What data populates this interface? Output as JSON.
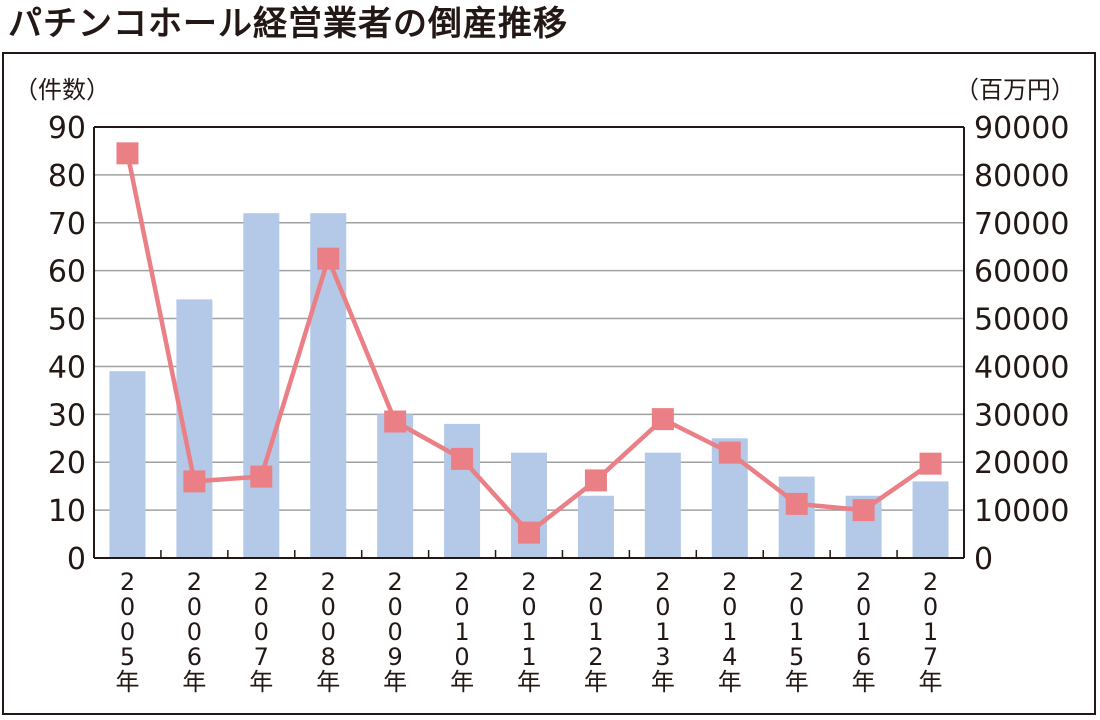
{
  "title": "パチンコホール経営業者の倒産推移",
  "chart_data": {
    "type": "bar",
    "categories": [
      "2005年",
      "2006年",
      "2007年",
      "2008年",
      "2009年",
      "2010年",
      "2011年",
      "2012年",
      "2013年",
      "2014年",
      "2015年",
      "2016年",
      "2017年"
    ],
    "category_chars": [
      [
        "2",
        "0",
        "0",
        "5",
        "年"
      ],
      [
        "2",
        "0",
        "0",
        "6",
        "年"
      ],
      [
        "2",
        "0",
        "0",
        "7",
        "年"
      ],
      [
        "2",
        "0",
        "0",
        "8",
        "年"
      ],
      [
        "2",
        "0",
        "0",
        "9",
        "年"
      ],
      [
        "2",
        "0",
        "1",
        "0",
        "年"
      ],
      [
        "2",
        "0",
        "1",
        "1",
        "年"
      ],
      [
        "2",
        "0",
        "1",
        "2",
        "年"
      ],
      [
        "2",
        "0",
        "1",
        "3",
        "年"
      ],
      [
        "2",
        "0",
        "1",
        "4",
        "年"
      ],
      [
        "2",
        "0",
        "1",
        "5",
        "年"
      ],
      [
        "2",
        "0",
        "1",
        "6",
        "年"
      ],
      [
        "2",
        "0",
        "1",
        "7",
        "年"
      ]
    ],
    "series": [
      {
        "type": "bar",
        "axis": "left",
        "color": "#b3c9e7",
        "values": [
          39,
          54,
          72,
          72,
          30,
          28,
          22,
          13,
          22,
          25,
          17,
          13,
          16
        ]
      },
      {
        "type": "line",
        "axis": "right",
        "color": "#eb7f86",
        "values": [
          84500,
          16000,
          17000,
          62500,
          28500,
          20700,
          5300,
          16200,
          29000,
          22000,
          11300,
          10000,
          19700
        ]
      }
    ],
    "left_axis": {
      "unit_label": "（件数）",
      "ylim": [
        0,
        90
      ],
      "ticks": [
        "0",
        "10",
        "20",
        "30",
        "40",
        "50",
        "60",
        "70",
        "80",
        "90"
      ]
    },
    "right_axis": {
      "unit_label": "（百万円）",
      "ylim": [
        0,
        90000
      ],
      "ticks": [
        "0",
        "10000",
        "20000",
        "30000",
        "40000",
        "50000",
        "60000",
        "70000",
        "80000",
        "90000"
      ]
    },
    "grid": true
  }
}
